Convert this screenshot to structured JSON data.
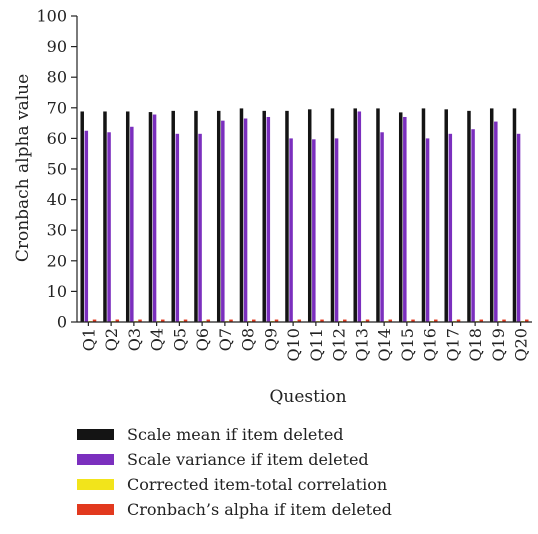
{
  "chart_data": {
    "type": "bar",
    "title": "",
    "xlabel": "Question",
    "ylabel": "Cronbach alpha value",
    "ylim": [
      0,
      100
    ],
    "yticks": [
      0,
      10,
      20,
      30,
      40,
      50,
      60,
      70,
      80,
      90,
      100
    ],
    "grid": false,
    "legend_position": "bottom",
    "categories": [
      "Q1",
      "Q2",
      "Q3",
      "Q4",
      "Q5",
      "Q6",
      "Q7",
      "Q8",
      "Q9",
      "Q10",
      "Q11",
      "Q12",
      "Q13",
      "Q14",
      "Q15",
      "Q16",
      "Q17",
      "Q18",
      "Q19",
      "Q20"
    ],
    "series": [
      {
        "name": "Scale mean if item deleted",
        "color": "#141414",
        "values": [
          68.8,
          68.8,
          68.8,
          68.6,
          69.0,
          69.0,
          69.0,
          69.8,
          69.0,
          69.0,
          69.5,
          69.8,
          69.8,
          69.8,
          68.5,
          69.8,
          69.5,
          69.0,
          69.8,
          69.8
        ]
      },
      {
        "name": "Scale variance if item deleted",
        "color": "#7B2FBE",
        "values": [
          62.5,
          62.0,
          63.8,
          67.8,
          61.5,
          61.5,
          65.8,
          66.5,
          67.0,
          60.0,
          59.7,
          60.0,
          68.8,
          62.0,
          67.0,
          60.0,
          61.5,
          63.0,
          65.5,
          61.5
        ]
      },
      {
        "name": "Corrected item-total correlation",
        "color": "#F2E41B",
        "values": [
          0.3,
          0.3,
          0.3,
          0.3,
          0.3,
          0.3,
          0.3,
          0.3,
          0.3,
          0.3,
          0.3,
          0.3,
          0.3,
          0.3,
          0.3,
          0.3,
          0.3,
          0.3,
          0.3,
          0.3
        ]
      },
      {
        "name": "Cronbach’s alpha if item deleted",
        "color": "#E2391E",
        "values": [
          0.8,
          0.8,
          0.8,
          0.8,
          0.8,
          0.8,
          0.8,
          0.8,
          0.8,
          0.8,
          0.8,
          0.8,
          0.8,
          0.8,
          0.8,
          0.8,
          0.8,
          0.8,
          0.8,
          0.8
        ]
      }
    ]
  }
}
